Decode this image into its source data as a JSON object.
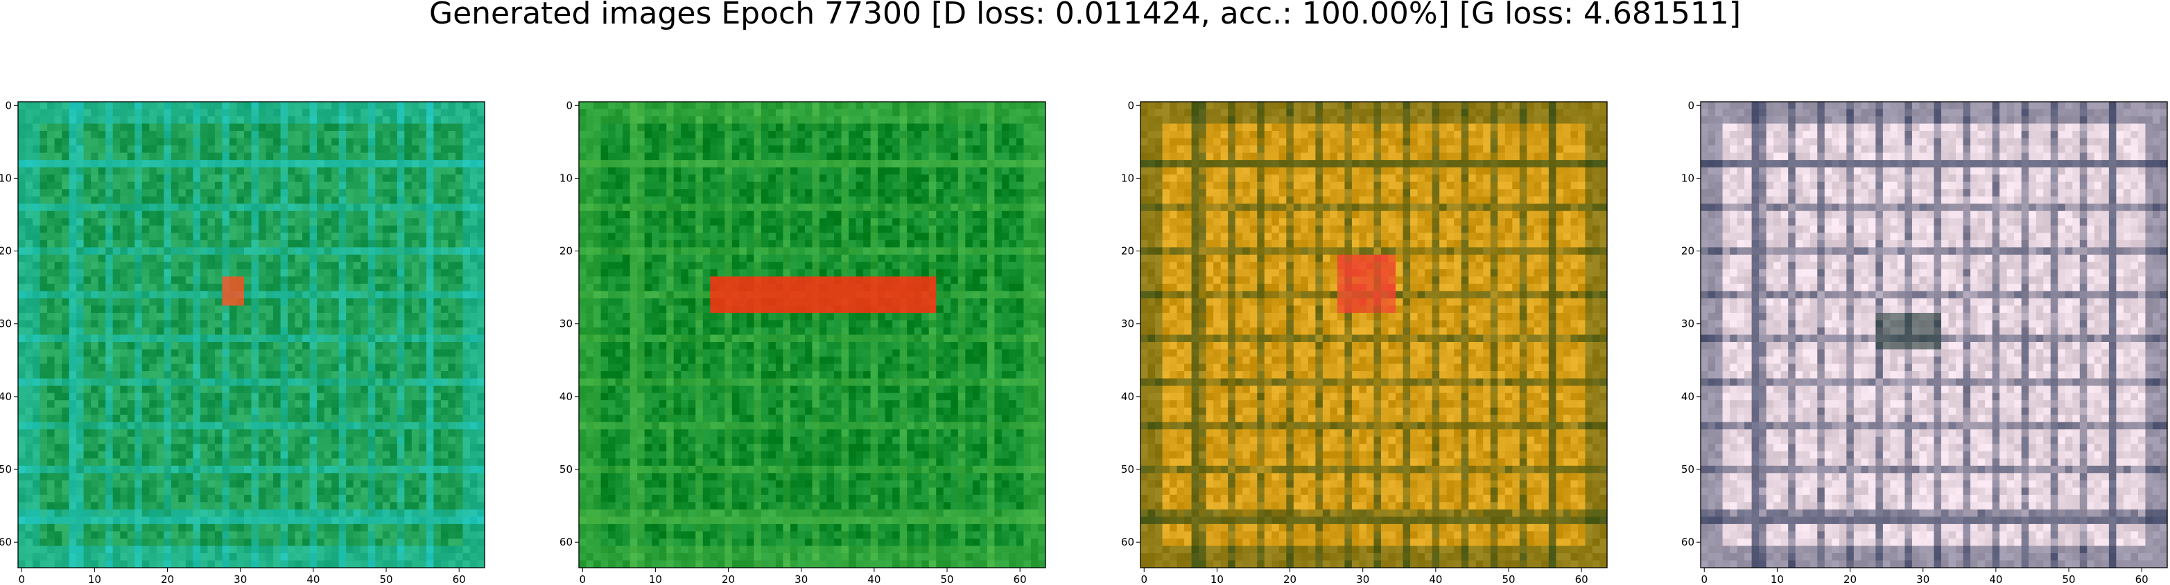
{
  "title": "Generated images Epoch 77300 [D loss: 0.011424, acc.: 100.00%] [G loss: 4.681511]",
  "chart_data": {
    "type": "heatmap",
    "description_of_content": "four 64x64 GAN-generated RGB images",
    "panels": [
      {
        "base_color": "#1f9e55",
        "accent_color": "#22d4e0",
        "blob_color": "#ff5020",
        "xticks": [
          0,
          10,
          20,
          30,
          40,
          50,
          60
        ],
        "yticks": [
          0,
          10,
          20,
          30,
          40,
          50,
          60
        ],
        "xlim": [
          0,
          63
        ],
        "ylim": [
          63,
          0
        ]
      },
      {
        "base_color": "#118c2c",
        "accent_color": "#5cc450",
        "blob_color": "#ff3010",
        "xticks": [
          0,
          10,
          20,
          30,
          40,
          50,
          60
        ],
        "yticks": [
          0,
          10,
          20,
          30,
          40,
          50,
          60
        ],
        "xlim": [
          0,
          63
        ],
        "ylim": [
          63,
          0
        ]
      },
      {
        "base_color": "#d8a018",
        "accent_color": "#0d3a14",
        "blob_color": "#f04030",
        "xticks": [
          0,
          10,
          20,
          30,
          40,
          50,
          60
        ],
        "yticks": [
          0,
          10,
          20,
          30,
          40,
          50,
          60
        ],
        "xlim": [
          0,
          63
        ],
        "ylim": [
          63,
          0
        ]
      },
      {
        "base_color": "#e8d6e0",
        "accent_color": "#0a1a40",
        "blob_color": "#14302a",
        "xticks": [
          0,
          10,
          20,
          30,
          40,
          50,
          60
        ],
        "yticks": [
          0,
          10,
          20,
          30,
          40,
          50,
          60
        ],
        "xlim": [
          0,
          63
        ],
        "ylim": [
          63,
          0
        ]
      }
    ]
  }
}
